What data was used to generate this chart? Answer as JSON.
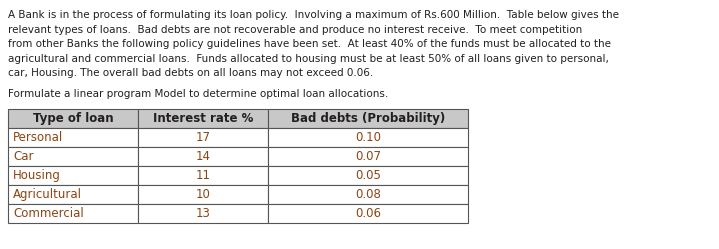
{
  "paragraph_lines": [
    "A Bank is in the process of formulating its loan policy.  Involving a maximum of Rs.600 Million.  Table below gives the",
    "relevant types of loans.  Bad debts are not recoverable and produce no interest receive.  To meet competition",
    "from other Banks the following policy guidelines have been set.  At least 40% of the funds must be allocated to the",
    "agricultural and commercial loans.  Funds allocated to housing must be at least 50% of all loans given to personal,",
    "car, Housing. The overall bad debts on all loans may not exceed 0.06."
  ],
  "subheading": "Formulate a linear program Model to determine optimal loan allocations.",
  "col_headers": [
    "Type of loan",
    "Interest rate %",
    "Bad debts (Probability)"
  ],
  "rows": [
    [
      "Personal",
      "17",
      "0.10"
    ],
    [
      "Car",
      "14",
      "0.07"
    ],
    [
      "Housing",
      "11",
      "0.05"
    ],
    [
      "Agricultural",
      "10",
      "0.08"
    ],
    [
      "Commercial",
      "13",
      "0.06"
    ]
  ],
  "bg_color": "#ffffff",
  "text_color": "#231F20",
  "data_text_color": "#8B4513",
  "header_bg": "#c8c8c8",
  "font_size_para": 7.5,
  "font_size_table_header": 8.5,
  "font_size_table_data": 8.5
}
